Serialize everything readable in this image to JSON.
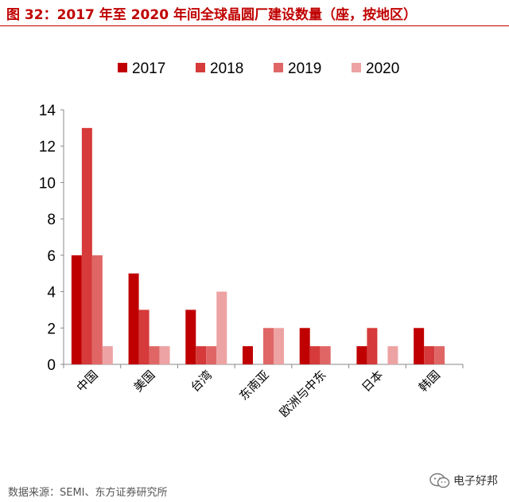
{
  "header": {
    "title": "图 32：2017 年至 2020 年间全球晶圆厂建设数量（座，按地区）"
  },
  "chart_data": {
    "type": "bar",
    "title": "",
    "xlabel": "",
    "ylabel": "",
    "categories": [
      "中国",
      "美国",
      "台湾",
      "东南亚",
      "欧洲与中东",
      "日本",
      "韩国"
    ],
    "series": [
      {
        "name": "2017",
        "color": "#c00000",
        "values": [
          6,
          5,
          3,
          1,
          2,
          1,
          2
        ]
      },
      {
        "name": "2018",
        "color": "#d63a3a",
        "values": [
          13,
          3,
          1,
          0,
          1,
          2,
          1
        ]
      },
      {
        "name": "2019",
        "color": "#e06666",
        "values": [
          6,
          1,
          1,
          2,
          1,
          0,
          1
        ]
      },
      {
        "name": "2020",
        "color": "#eda3a3",
        "values": [
          1,
          1,
          4,
          2,
          0,
          1,
          0
        ]
      }
    ],
    "ylim": [
      0,
      14
    ],
    "yticks": [
      0,
      2,
      4,
      6,
      8,
      10,
      12,
      14
    ],
    "grid": false,
    "legend_position": "top-center"
  },
  "footer": {
    "source": "数据来源：SEMI、东方证券研究所",
    "watermark": "电子好邦",
    "watermark_icon": "wechat-icon"
  }
}
